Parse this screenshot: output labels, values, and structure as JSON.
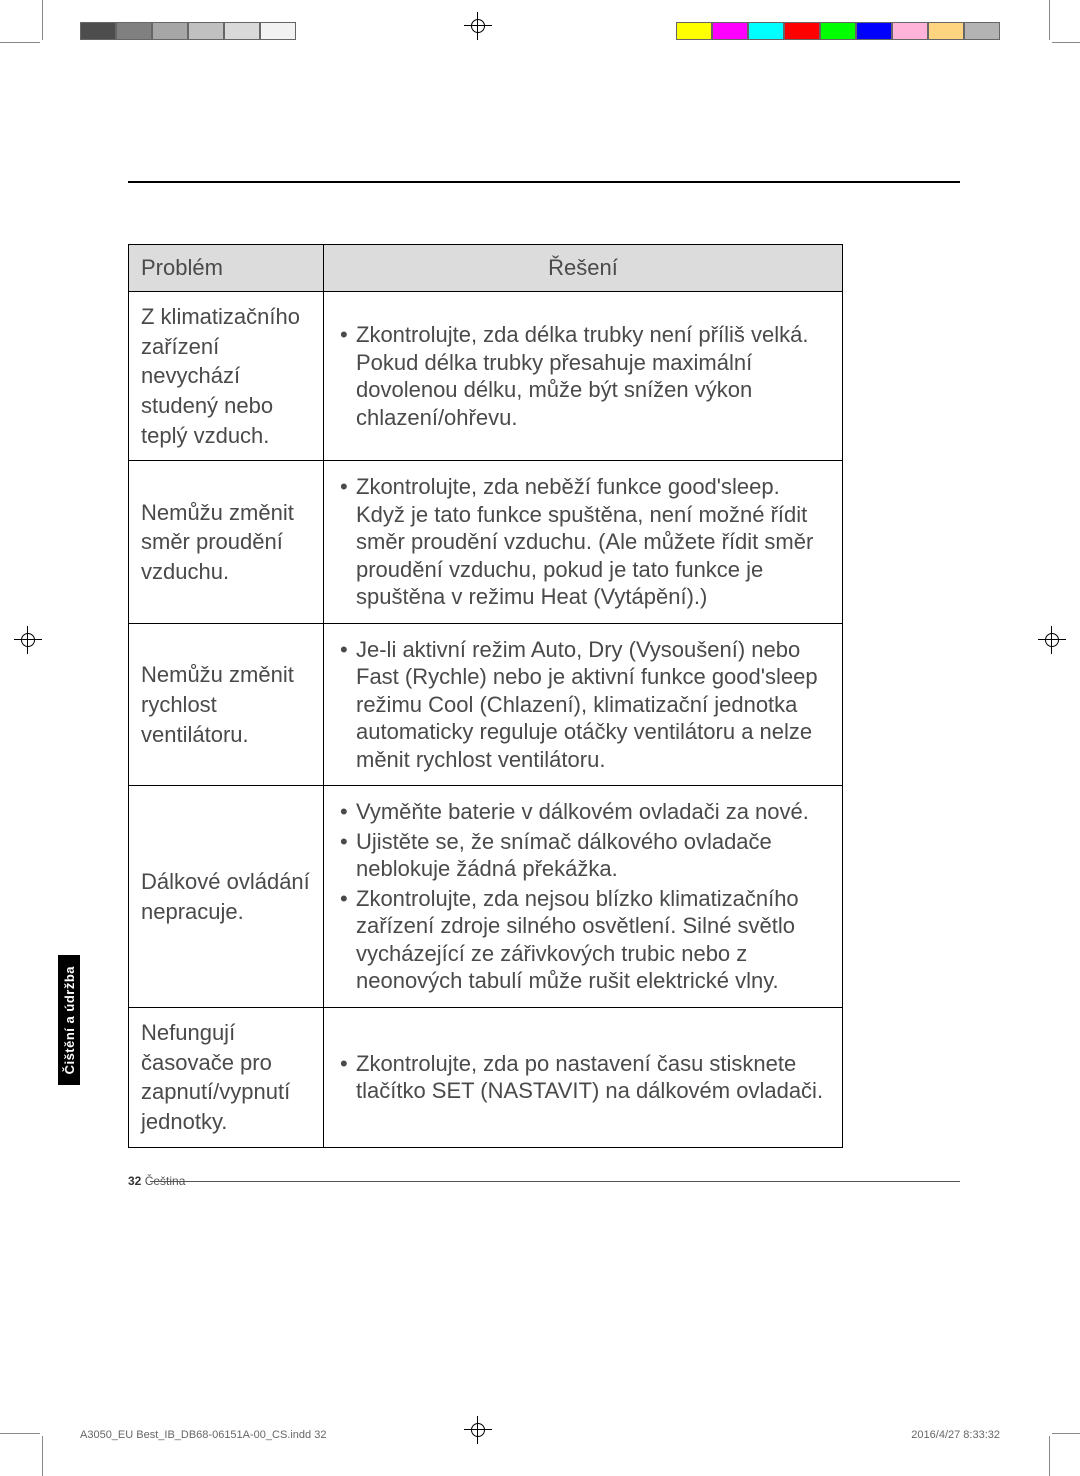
{
  "print_marks": {
    "color_bar_left": [
      "#4d4d4d",
      "#808080",
      "#a6a6a6",
      "#c0c0c0",
      "#d9d9d9",
      "#f2f2f2"
    ],
    "color_bar_right": [
      "#ffff00",
      "#ff00ff",
      "#00ffff",
      "#ff0000",
      "#00ff00",
      "#0000ff",
      "#ffb3d9",
      "#ffd480",
      "#b3b3b3"
    ]
  },
  "table": {
    "header": {
      "problem": "Problém",
      "solution": "Řešení"
    },
    "rows": [
      {
        "problem": "Z klimatizačního zařízení nevychází studený nebo teplý vzduch.",
        "solutions": [
          "Zkontrolujte, zda délka trubky není příliš velká. Pokud délka trubky přesahuje maximální dovolenou délku, může být snížen výkon chlazení/ohřevu."
        ]
      },
      {
        "problem": "Nemůžu změnit směr proudění vzduchu.",
        "solutions": [
          "Zkontrolujte, zda neběží funkce good'sleep. Když je tato funkce spuštěna, není možné řídit směr proudění vzduchu. (Ale můžete řídit směr proudění vzduchu, pokud je tato funkce je spuštěna v režimu Heat (Vytápění).)"
        ]
      },
      {
        "problem": "Nemůžu změnit rychlost ventilátoru.",
        "solutions": [
          "Je-li aktivní režim Auto, Dry (Vysoušení) nebo Fast (Rychle) nebo je aktivní funkce good'sleep režimu Cool (Chlazení), klimatizační jednotka automaticky reguluje otáčky ventilátoru a nelze měnit rychlost ventilátoru."
        ]
      },
      {
        "problem": "Dálkové ovládání nepracuje.",
        "solutions": [
          "Vyměňte baterie v dálkovém ovladači za nové.",
          "Ujistěte se, že snímač dálkového ovladače neblokuje žádná překážka.",
          "Zkontrolujte, zda nejsou blízko klimatizačního zařízení zdroje silného osvětlení. Silné světlo vycházející ze zářivkových trubic nebo z neonových tabulí může rušit elektrické vlny."
        ]
      },
      {
        "problem": "Nefungují časovače pro zapnutí/vypnutí jednotky.",
        "solutions": [
          "Zkontrolujte, zda po nastavení času stisknete tlačítko SET (NASTAVIT) na dálkovém ovladači."
        ]
      }
    ]
  },
  "side_tab": "Čištění a údržba",
  "page_number": "32",
  "page_lang": "Čeština",
  "footer": {
    "file": "A3050_EU Best_IB_DB68-06151A-00_CS.indd   32",
    "timestamp": "2016/4/27   8:33:32"
  }
}
